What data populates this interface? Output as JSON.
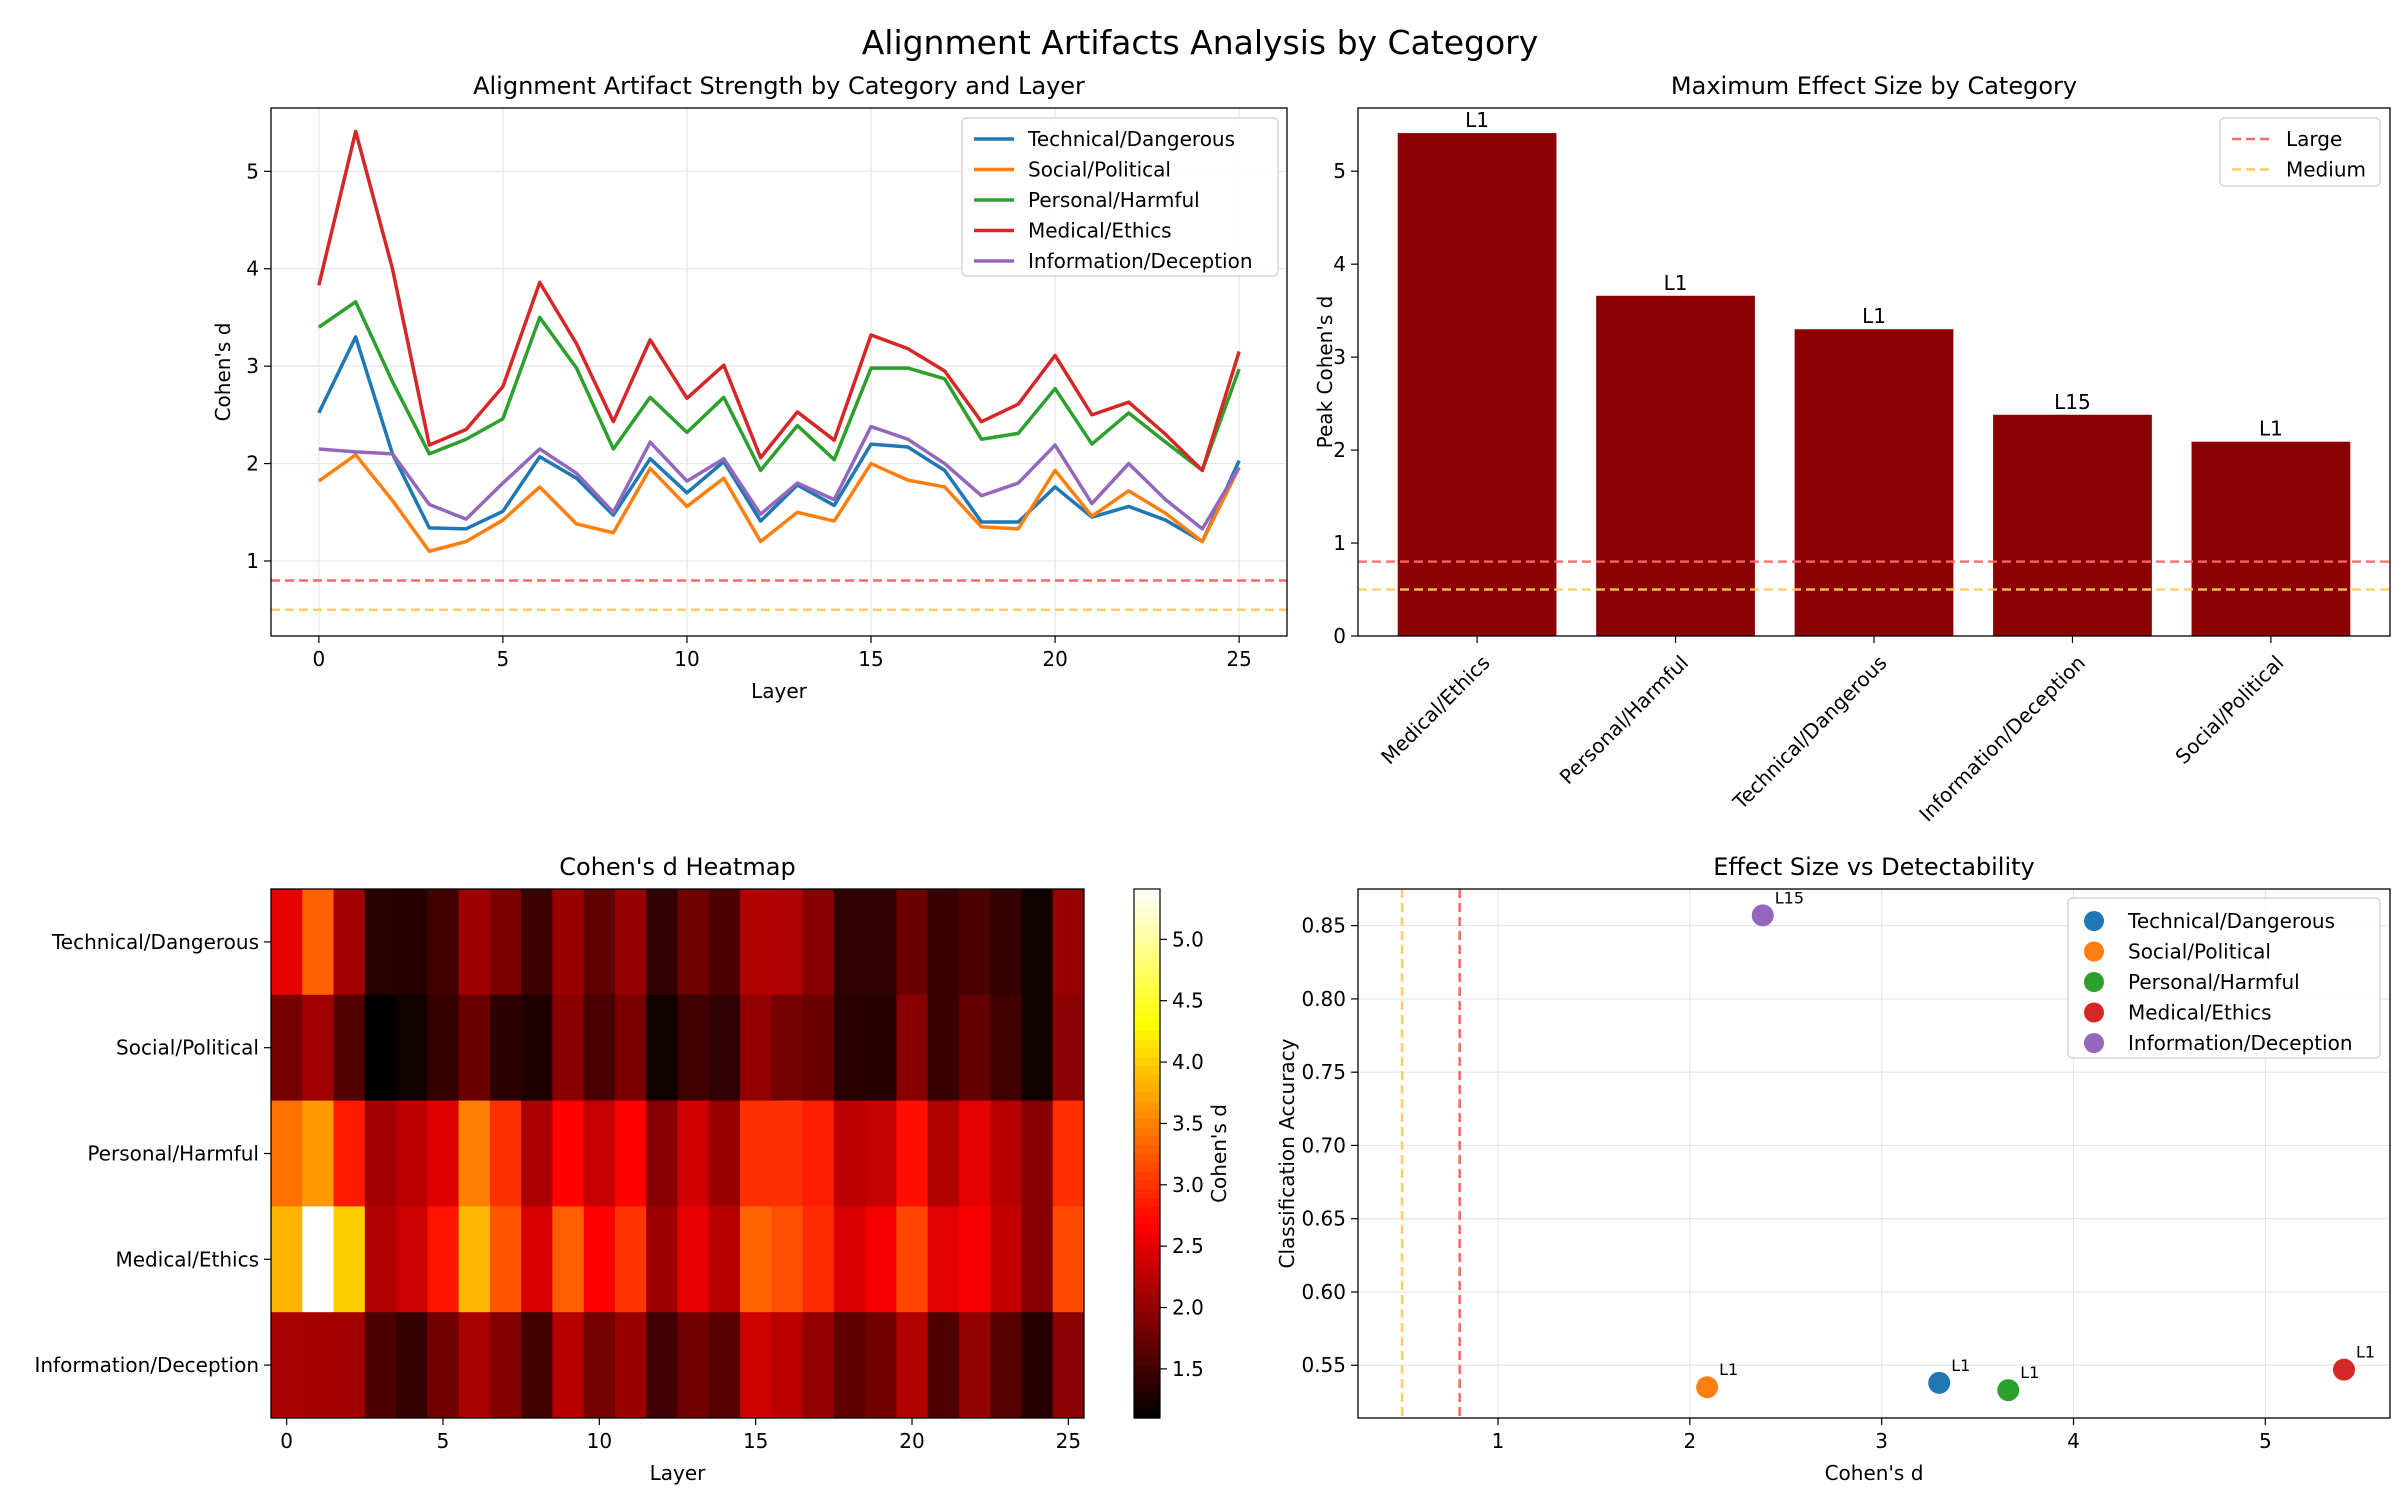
{
  "figure": {
    "title": "Alignment Artifacts Analysis by Category"
  },
  "colors": {
    "Technical/Dangerous": "#1f77b4",
    "Social/Political": "#ff7f0e",
    "Personal/Harmful": "#2ca02c",
    "Medical/Ethics": "#d62728",
    "Information/Deception": "#9467bd",
    "bar": "#8b0000",
    "large_line": "#ff6666",
    "medium_line": "#ffcc66"
  },
  "chart_data": [
    {
      "type": "line",
      "title": "Alignment Artifact Strength by Category and Layer",
      "xlabel": "Layer",
      "ylabel": "Cohen's d",
      "xlim": [
        -1.3,
        26.3
      ],
      "ylim": [
        0.23,
        5.65
      ],
      "xticks": [
        0,
        5,
        10,
        15,
        20,
        25
      ],
      "yticks": [
        1,
        2,
        3,
        4,
        5
      ],
      "grid": true,
      "legend": "top-right",
      "x": [
        0,
        1,
        2,
        3,
        4,
        5,
        6,
        7,
        8,
        9,
        10,
        11,
        12,
        13,
        14,
        15,
        16,
        17,
        18,
        19,
        20,
        21,
        22,
        23,
        24,
        25
      ],
      "series": [
        {
          "name": "Technical/Dangerous",
          "values": [
            2.52,
            3.3,
            2.1,
            1.34,
            1.33,
            1.51,
            2.07,
            1.85,
            1.47,
            2.05,
            1.7,
            2.02,
            1.41,
            1.78,
            1.57,
            2.2,
            2.17,
            1.93,
            1.4,
            1.4,
            1.76,
            1.45,
            1.56,
            1.42,
            1.2,
            2.03
          ]
        },
        {
          "name": "Social/Political",
          "values": [
            1.82,
            2.09,
            1.62,
            1.1,
            1.2,
            1.42,
            1.76,
            1.38,
            1.29,
            1.95,
            1.56,
            1.85,
            1.2,
            1.5,
            1.41,
            2.0,
            1.83,
            1.76,
            1.35,
            1.33,
            1.93,
            1.46,
            1.72,
            1.49,
            1.2,
            1.96
          ]
        },
        {
          "name": "Personal/Harmful",
          "values": [
            3.4,
            3.66,
            2.84,
            2.1,
            2.25,
            2.46,
            3.5,
            2.98,
            2.15,
            2.68,
            2.32,
            2.68,
            1.93,
            2.39,
            2.04,
            2.98,
            2.98,
            2.87,
            2.25,
            2.31,
            2.77,
            2.2,
            2.52,
            2.22,
            1.93,
            2.97
          ]
        },
        {
          "name": "Medical/Ethics",
          "values": [
            3.83,
            5.41,
            4.0,
            2.19,
            2.35,
            2.79,
            3.86,
            3.23,
            2.43,
            3.27,
            2.67,
            3.01,
            2.06,
            2.53,
            2.24,
            3.32,
            3.18,
            2.95,
            2.43,
            2.61,
            3.11,
            2.5,
            2.63,
            2.3,
            1.93,
            3.15
          ]
        },
        {
          "name": "Information/Deception",
          "values": [
            2.15,
            2.12,
            2.1,
            1.58,
            1.43,
            1.8,
            2.15,
            1.9,
            1.5,
            2.22,
            1.82,
            2.05,
            1.48,
            1.8,
            1.63,
            2.38,
            2.25,
            2.0,
            1.67,
            1.8,
            2.19,
            1.59,
            2.0,
            1.63,
            1.33,
            1.96
          ]
        }
      ],
      "reference_lines": [
        {
          "name": "Large",
          "y": 0.8,
          "color": "#ff6666"
        },
        {
          "name": "Medium",
          "y": 0.5,
          "color": "#ffcc66"
        }
      ]
    },
    {
      "type": "bar",
      "title": "Maximum Effect Size by Category",
      "xlabel": "",
      "ylabel": "Peak Cohen's d",
      "ylim": [
        0,
        5.68
      ],
      "yticks": [
        0,
        1,
        2,
        3,
        4,
        5
      ],
      "categories": [
        "Medical/Ethics",
        "Personal/Harmful",
        "Technical/Dangerous",
        "Information/Deception",
        "Social/Political"
      ],
      "values": [
        5.41,
        3.66,
        3.3,
        2.38,
        2.09
      ],
      "data_labels": [
        "L1",
        "L1",
        "L1",
        "L15",
        "L1"
      ],
      "legend": "top-right",
      "reference_lines": [
        {
          "name": "Large",
          "y": 0.8,
          "color": "#ff6666"
        },
        {
          "name": "Medium",
          "y": 0.5,
          "color": "#ffcc66"
        }
      ]
    },
    {
      "type": "heatmap",
      "title": "Cohen's d Heatmap",
      "xlabel": "Layer",
      "ylabel": "",
      "rows": [
        "Technical/Dangerous",
        "Social/Political",
        "Personal/Harmful",
        "Medical/Ethics",
        "Information/Deception"
      ],
      "xticks": [
        0,
        5,
        10,
        15,
        20,
        25
      ],
      "colorbar_label": "Cohen's d",
      "colorbar_ticks": [
        1.5,
        2.0,
        2.5,
        3.0,
        3.5,
        4.0,
        4.5,
        5.0
      ],
      "colorbar_range": [
        1.1,
        5.41
      ],
      "colormap": "hot",
      "values_source": "line chart series (same values per category and layer)"
    },
    {
      "type": "scatter",
      "title": "Effect Size vs Detectability",
      "xlabel": "Cohen's d",
      "ylabel": "Classification Accuracy",
      "xlim": [
        0.27,
        5.65
      ],
      "ylim": [
        0.514,
        0.875
      ],
      "xticks": [
        1,
        2,
        3,
        4,
        5
      ],
      "yticks": [
        0.55,
        0.6,
        0.65,
        0.7,
        0.75,
        0.8,
        0.85
      ],
      "grid": true,
      "legend": "top-right",
      "points": [
        {
          "name": "Technical/Dangerous",
          "x": 3.3,
          "y": 0.538,
          "label": "L1"
        },
        {
          "name": "Social/Political",
          "x": 2.09,
          "y": 0.535,
          "label": "L1"
        },
        {
          "name": "Personal/Harmful",
          "x": 3.66,
          "y": 0.533,
          "label": "L1"
        },
        {
          "name": "Medical/Ethics",
          "x": 5.41,
          "y": 0.547,
          "label": "L1"
        },
        {
          "name": "Information/Deception",
          "x": 2.38,
          "y": 0.857,
          "label": "L15"
        }
      ],
      "reference_lines": [
        {
          "name": "Large",
          "x": 0.8,
          "color": "#ff6666"
        },
        {
          "name": "Medium",
          "x": 0.5,
          "color": "#ffcc66"
        }
      ]
    }
  ]
}
